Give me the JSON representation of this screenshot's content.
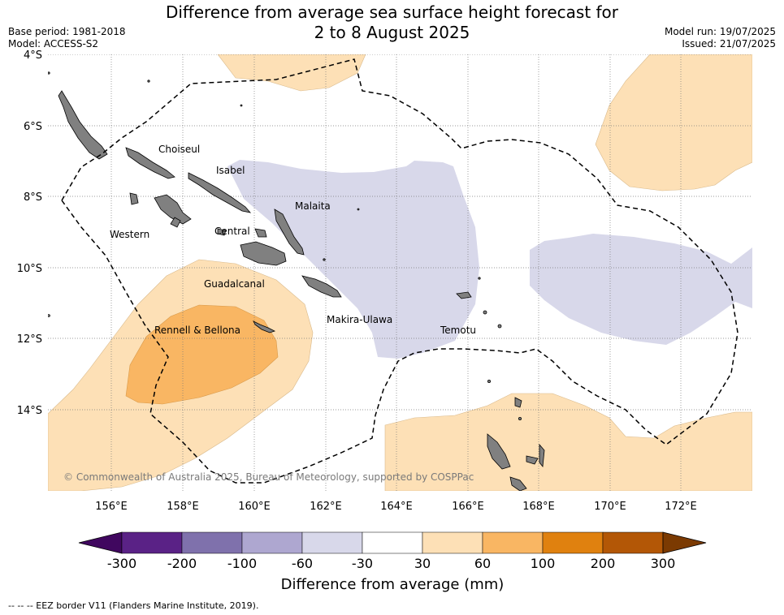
{
  "header": {
    "title_line1": "Difference from average sea surface height forecast for",
    "title_line2": "2 to 8 August 2025",
    "base_period": "Base period: 1981-2018",
    "model": "Model: ACCESS-S2",
    "model_run": "Model run: 19/07/2025",
    "issued": "Issued: 21/07/2025"
  },
  "map": {
    "lat_ticks": [
      "4°S",
      "6°S",
      "8°S",
      "10°S",
      "12°S",
      "14°S"
    ],
    "lon_ticks": [
      "156°E",
      "158°E",
      "160°E",
      "162°E",
      "164°E",
      "166°E",
      "168°E",
      "170°E",
      "172°E"
    ],
    "places": [
      "Choiseul",
      "Isabel",
      "Malaita",
      "Western",
      "Central",
      "Guadalcanal",
      "Makira-Ulawa",
      "Rennell & Bellona",
      "Temotu"
    ],
    "copyright": "© Commonwealth of Australia 2025, Bureau of Meteorology, supported by COSPPac",
    "colors": {
      "land": "#808080",
      "neg_30_60": "#d8d8ea",
      "pos_30_60": "#fde0b6",
      "pos_60_100": "#f9b663"
    }
  },
  "colorbar": {
    "label": "Difference from average (mm)",
    "tick_labels": [
      "-300",
      "-200",
      "-100",
      "-60",
      "-30",
      "30",
      "60",
      "100",
      "200",
      "300"
    ],
    "colors": [
      "#40075f",
      "#5a2286",
      "#7f71ac",
      "#aea7d0",
      "#d8d8ea",
      "#ffffff",
      "#fde0b6",
      "#f9b663",
      "#e0810f",
      "#b35706",
      "#7b3a02"
    ]
  },
  "legend": {
    "eez_border": "--  --  -- EEZ border V11 (Flanders Marine Institute, 2019)."
  }
}
